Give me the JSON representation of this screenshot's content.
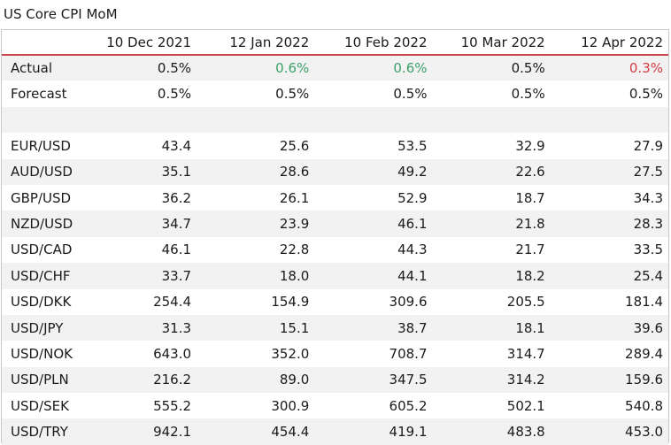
{
  "title": "US Core CPI MoM",
  "chart_data": {
    "type": "table",
    "title": "US Core CPI MoM",
    "columns": [
      "10 Dec 2021",
      "12 Jan 2022",
      "10 Feb 2022",
      "10 Mar 2022",
      "12 Apr 2022"
    ],
    "release_rows": [
      {
        "label": "Actual",
        "values": [
          "0.5%",
          "0.6%",
          "0.6%",
          "0.5%",
          "0.3%"
        ],
        "status": [
          "neutral",
          "up",
          "up",
          "neutral",
          "down"
        ]
      },
      {
        "label": "Forecast",
        "values": [
          "0.5%",
          "0.5%",
          "0.5%",
          "0.5%",
          "0.5%"
        ],
        "status": [
          "neutral",
          "neutral",
          "neutral",
          "neutral",
          "neutral"
        ]
      }
    ],
    "pair_rows": [
      {
        "label": "EUR/USD",
        "values": [
          "43.4",
          "25.6",
          "53.5",
          "32.9",
          "27.9"
        ]
      },
      {
        "label": "AUD/USD",
        "values": [
          "35.1",
          "28.6",
          "49.2",
          "22.6",
          "27.5"
        ]
      },
      {
        "label": "GBP/USD",
        "values": [
          "36.2",
          "26.1",
          "52.9",
          "18.7",
          "34.3"
        ]
      },
      {
        "label": "NZD/USD",
        "values": [
          "34.7",
          "23.9",
          "46.1",
          "21.8",
          "28.3"
        ]
      },
      {
        "label": "USD/CAD",
        "values": [
          "46.1",
          "22.8",
          "44.3",
          "21.7",
          "33.5"
        ]
      },
      {
        "label": "USD/CHF",
        "values": [
          "33.7",
          "18.0",
          "44.1",
          "18.2",
          "25.4"
        ]
      },
      {
        "label": "USD/DKK",
        "values": [
          "254.4",
          "154.9",
          "309.6",
          "205.5",
          "181.4"
        ]
      },
      {
        "label": "USD/JPY",
        "values": [
          "31.3",
          "15.1",
          "38.7",
          "18.1",
          "39.6"
        ]
      },
      {
        "label": "USD/NOK",
        "values": [
          "643.0",
          "352.0",
          "708.7",
          "314.7",
          "289.4"
        ]
      },
      {
        "label": "USD/PLN",
        "values": [
          "216.2",
          "89.0",
          "347.5",
          "314.2",
          "159.6"
        ]
      },
      {
        "label": "USD/SEK",
        "values": [
          "555.2",
          "300.9",
          "605.2",
          "502.1",
          "540.8"
        ]
      },
      {
        "label": "USD/TRY",
        "values": [
          "942.1",
          "454.4",
          "419.1",
          "483.8",
          "453.0"
        ]
      }
    ]
  },
  "colors": {
    "header_rule": "#c9454d",
    "beat": "#3fa06a",
    "miss": "#d13c43",
    "stripe": "#f2f2f2",
    "border": "#c8c8c8"
  }
}
